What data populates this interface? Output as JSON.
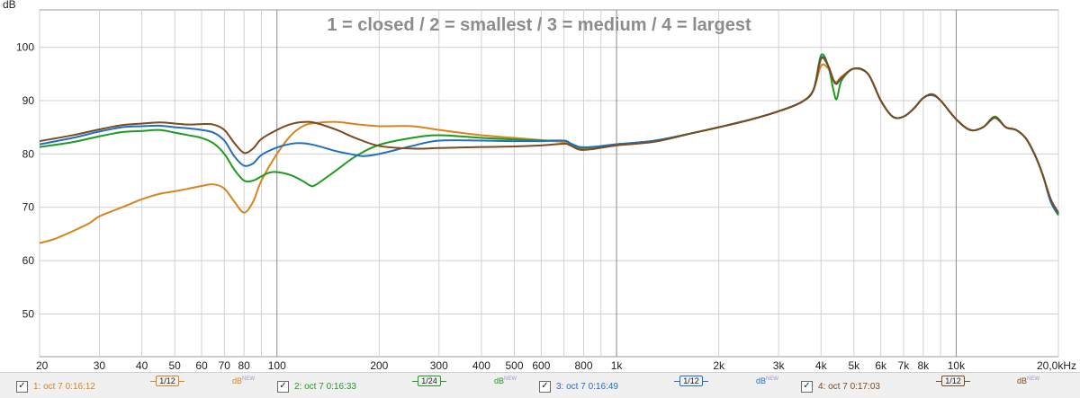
{
  "chart_data": {
    "type": "line",
    "title": "1 = closed / 2 = smallest / 3 = medium / 4 = largest",
    "ylabel": "dB",
    "x_scale": "log",
    "xlim": [
      20,
      20000
    ],
    "ylim": [
      42,
      107
    ],
    "grid": true,
    "y_ticks": [
      50,
      60,
      70,
      80,
      90,
      100
    ],
    "x_tick_values": [
      20,
      30,
      40,
      50,
      60,
      70,
      80,
      100,
      200,
      300,
      400,
      500,
      600,
      800,
      1000,
      2000,
      3000,
      4000,
      5000,
      6000,
      7000,
      8000,
      10000,
      20000
    ],
    "x_tick_labels": [
      "20",
      "30",
      "40",
      "50",
      "60",
      "70",
      "80",
      "100",
      "200",
      "300",
      "400",
      "500",
      "600",
      "800",
      "1k",
      "2k",
      "3k",
      "4k",
      "5k",
      "6k",
      "7k",
      "8k",
      "10k",
      "20,0kHz"
    ],
    "series": [
      {
        "name": "1: oct 7 0:16:12",
        "color": "#d8841e",
        "smoothing": "1/12",
        "points": [
          [
            20,
            63.3
          ],
          [
            22,
            64
          ],
          [
            25,
            65.5
          ],
          [
            28,
            67
          ],
          [
            30,
            68.3
          ],
          [
            35,
            70
          ],
          [
            40,
            71.5
          ],
          [
            45,
            72.5
          ],
          [
            50,
            73
          ],
          [
            55,
            73.5
          ],
          [
            60,
            74
          ],
          [
            65,
            74.3
          ],
          [
            70,
            73.5
          ],
          [
            75,
            71
          ],
          [
            80,
            69
          ],
          [
            85,
            71
          ],
          [
            90,
            75
          ],
          [
            100,
            80
          ],
          [
            110,
            83.5
          ],
          [
            120,
            85.3
          ],
          [
            130,
            85.8
          ],
          [
            150,
            86
          ],
          [
            170,
            85.6
          ],
          [
            200,
            85.2
          ],
          [
            250,
            85.2
          ],
          [
            300,
            84.5
          ],
          [
            400,
            83.5
          ],
          [
            500,
            83
          ],
          [
            600,
            82.6
          ],
          [
            700,
            82.2
          ],
          [
            730,
            81.8
          ],
          [
            780,
            81
          ],
          [
            850,
            81
          ],
          [
            1000,
            81.8
          ],
          [
            1300,
            82.5
          ],
          [
            1700,
            84
          ],
          [
            2000,
            85
          ],
          [
            2500,
            86.5
          ],
          [
            3000,
            88
          ],
          [
            3500,
            89.7
          ],
          [
            3800,
            92
          ],
          [
            4000,
            96.5
          ],
          [
            4200,
            96
          ],
          [
            4400,
            93.5
          ],
          [
            4600,
            94.5
          ],
          [
            5000,
            96
          ],
          [
            5500,
            95
          ],
          [
            6000,
            90
          ],
          [
            6500,
            87
          ],
          [
            7000,
            87
          ],
          [
            7500,
            88.5
          ],
          [
            8000,
            90.5
          ],
          [
            8500,
            91
          ],
          [
            9000,
            90
          ],
          [
            10000,
            86.5
          ],
          [
            11000,
            84.5
          ],
          [
            12000,
            85
          ],
          [
            13000,
            86.8
          ],
          [
            14000,
            85
          ],
          [
            15000,
            84.5
          ],
          [
            16000,
            83
          ],
          [
            17000,
            80
          ],
          [
            18000,
            76
          ],
          [
            19000,
            71
          ],
          [
            20000,
            68.6
          ]
        ]
      },
      {
        "name": "2: oct 7 0:16:33",
        "color": "#1f9a1f",
        "smoothing": "1/24",
        "points": [
          [
            20,
            81.3
          ],
          [
            25,
            82.2
          ],
          [
            30,
            83.3
          ],
          [
            35,
            84.1
          ],
          [
            40,
            84.3
          ],
          [
            45,
            84.5
          ],
          [
            50,
            84
          ],
          [
            55,
            83.5
          ],
          [
            60,
            83
          ],
          [
            65,
            82
          ],
          [
            70,
            80
          ],
          [
            75,
            77
          ],
          [
            80,
            75
          ],
          [
            85,
            75
          ],
          [
            90,
            75.8
          ],
          [
            95,
            76.5
          ],
          [
            100,
            76.6
          ],
          [
            110,
            76
          ],
          [
            120,
            74.8
          ],
          [
            125,
            74.1
          ],
          [
            130,
            74.2
          ],
          [
            150,
            77
          ],
          [
            170,
            79.5
          ],
          [
            200,
            81.7
          ],
          [
            250,
            83
          ],
          [
            300,
            83.5
          ],
          [
            400,
            83
          ],
          [
            500,
            82.7
          ],
          [
            600,
            82.5
          ],
          [
            700,
            82.5
          ],
          [
            730,
            82
          ],
          [
            780,
            81.2
          ],
          [
            850,
            81.3
          ],
          [
            1000,
            81.8
          ],
          [
            1300,
            82.5
          ],
          [
            1700,
            84
          ],
          [
            2000,
            85
          ],
          [
            2500,
            86.5
          ],
          [
            3000,
            88
          ],
          [
            3500,
            89.7
          ],
          [
            3800,
            92
          ],
          [
            4000,
            98.5
          ],
          [
            4200,
            96.5
          ],
          [
            4350,
            92
          ],
          [
            4450,
            90.3
          ],
          [
            4600,
            93.8
          ],
          [
            5000,
            96
          ],
          [
            5500,
            95
          ],
          [
            6000,
            90
          ],
          [
            6500,
            87
          ],
          [
            7000,
            87
          ],
          [
            7500,
            88.5
          ],
          [
            8000,
            90.5
          ],
          [
            8500,
            91
          ],
          [
            9000,
            90
          ],
          [
            10000,
            86.5
          ],
          [
            11000,
            84.5
          ],
          [
            12000,
            85
          ],
          [
            13000,
            87
          ],
          [
            14000,
            85
          ],
          [
            15000,
            84.5
          ],
          [
            16000,
            83
          ],
          [
            17000,
            80
          ],
          [
            18000,
            76
          ],
          [
            19000,
            71
          ],
          [
            20000,
            68.5
          ]
        ]
      },
      {
        "name": "3: oct 7 0:16:49",
        "color": "#1f6fc0",
        "smoothing": "1/12",
        "points": [
          [
            20,
            81.8
          ],
          [
            25,
            83
          ],
          [
            30,
            84.2
          ],
          [
            35,
            85
          ],
          [
            40,
            85.2
          ],
          [
            45,
            85.3
          ],
          [
            50,
            85
          ],
          [
            55,
            84.8
          ],
          [
            60,
            84.5
          ],
          [
            65,
            84
          ],
          [
            70,
            82.5
          ],
          [
            75,
            79.5
          ],
          [
            80,
            77.8
          ],
          [
            85,
            78.2
          ],
          [
            90,
            79.8
          ],
          [
            100,
            81.2
          ],
          [
            110,
            81.9
          ],
          [
            120,
            82
          ],
          [
            130,
            81.6
          ],
          [
            150,
            80.5
          ],
          [
            170,
            79.8
          ],
          [
            180,
            79.6
          ],
          [
            200,
            80
          ],
          [
            250,
            81.5
          ],
          [
            300,
            82.5
          ],
          [
            400,
            82.5
          ],
          [
            500,
            82.4
          ],
          [
            600,
            82.4
          ],
          [
            700,
            82.5
          ],
          [
            730,
            82
          ],
          [
            780,
            81.3
          ],
          [
            850,
            81.3
          ],
          [
            1000,
            81.8
          ],
          [
            1300,
            82.5
          ],
          [
            1700,
            84
          ],
          [
            2000,
            85
          ],
          [
            2500,
            86.5
          ],
          [
            3000,
            88
          ],
          [
            3500,
            89.7
          ],
          [
            3800,
            92
          ],
          [
            4000,
            98
          ],
          [
            4200,
            96.5
          ],
          [
            4400,
            93.2
          ],
          [
            4600,
            94.2
          ],
          [
            5000,
            96
          ],
          [
            5500,
            95
          ],
          [
            6000,
            90
          ],
          [
            6500,
            87
          ],
          [
            7000,
            87
          ],
          [
            7500,
            88.5
          ],
          [
            8000,
            90.5
          ],
          [
            8500,
            91
          ],
          [
            9000,
            90
          ],
          [
            10000,
            86.5
          ],
          [
            11000,
            84.5
          ],
          [
            12000,
            85
          ],
          [
            13000,
            86.8
          ],
          [
            14000,
            85
          ],
          [
            15000,
            84.5
          ],
          [
            16000,
            83
          ],
          [
            17000,
            80
          ],
          [
            18000,
            76
          ],
          [
            19000,
            71
          ],
          [
            20000,
            68.8
          ]
        ]
      },
      {
        "name": "4: oct 7 0:17:03",
        "color": "#7b4a1e",
        "smoothing": "1/12",
        "points": [
          [
            20,
            82.4
          ],
          [
            25,
            83.5
          ],
          [
            30,
            84.6
          ],
          [
            35,
            85.4
          ],
          [
            40,
            85.7
          ],
          [
            45,
            85.9
          ],
          [
            50,
            85.7
          ],
          [
            55,
            85.5
          ],
          [
            60,
            85.6
          ],
          [
            65,
            85.5
          ],
          [
            70,
            84.5
          ],
          [
            75,
            82
          ],
          [
            80,
            80.2
          ],
          [
            85,
            81
          ],
          [
            90,
            82.8
          ],
          [
            100,
            84.5
          ],
          [
            110,
            85.6
          ],
          [
            120,
            86
          ],
          [
            130,
            85.8
          ],
          [
            150,
            84.5
          ],
          [
            170,
            83
          ],
          [
            200,
            81.5
          ],
          [
            250,
            81
          ],
          [
            300,
            81.1
          ],
          [
            400,
            81.3
          ],
          [
            500,
            81.4
          ],
          [
            600,
            81.6
          ],
          [
            700,
            81.9
          ],
          [
            730,
            81.6
          ],
          [
            780,
            80.8
          ],
          [
            850,
            80.9
          ],
          [
            1000,
            81.6
          ],
          [
            1300,
            82.3
          ],
          [
            1700,
            84
          ],
          [
            2000,
            85
          ],
          [
            2500,
            86.5
          ],
          [
            3000,
            88
          ],
          [
            3500,
            89.7
          ],
          [
            3800,
            92
          ],
          [
            4000,
            97.8
          ],
          [
            4200,
            96.5
          ],
          [
            4400,
            93.3
          ],
          [
            4600,
            94.3
          ],
          [
            5000,
            96
          ],
          [
            5500,
            95
          ],
          [
            6000,
            90
          ],
          [
            6500,
            87
          ],
          [
            7000,
            87
          ],
          [
            7500,
            88.5
          ],
          [
            8000,
            90.5
          ],
          [
            8500,
            91.2
          ],
          [
            9000,
            90
          ],
          [
            10000,
            86.5
          ],
          [
            11000,
            84.5
          ],
          [
            12000,
            85
          ],
          [
            13000,
            86.8
          ],
          [
            14000,
            85
          ],
          [
            15000,
            84.5
          ],
          [
            16000,
            83
          ],
          [
            17000,
            80
          ],
          [
            18000,
            76
          ],
          [
            19000,
            71.5
          ],
          [
            20000,
            69
          ]
        ]
      }
    ]
  },
  "legend": {
    "db_label": "dB",
    "db_sup": "NEW",
    "items": [
      {
        "name": "1: oct 7 0:16:12",
        "smoothing": "1/12",
        "color": "#d8841e",
        "checked": "✓"
      },
      {
        "name": "2: oct 7 0:16:33",
        "smoothing": "1/24",
        "color": "#1f9a1f",
        "checked": "✓"
      },
      {
        "name": "3: oct 7 0:16:49",
        "smoothing": "1/12",
        "color": "#1f6fc0",
        "checked": "✓"
      },
      {
        "name": "4: oct 7 0:17:03",
        "smoothing": "1/12",
        "color": "#7b4a1e",
        "checked": "✓"
      }
    ]
  }
}
